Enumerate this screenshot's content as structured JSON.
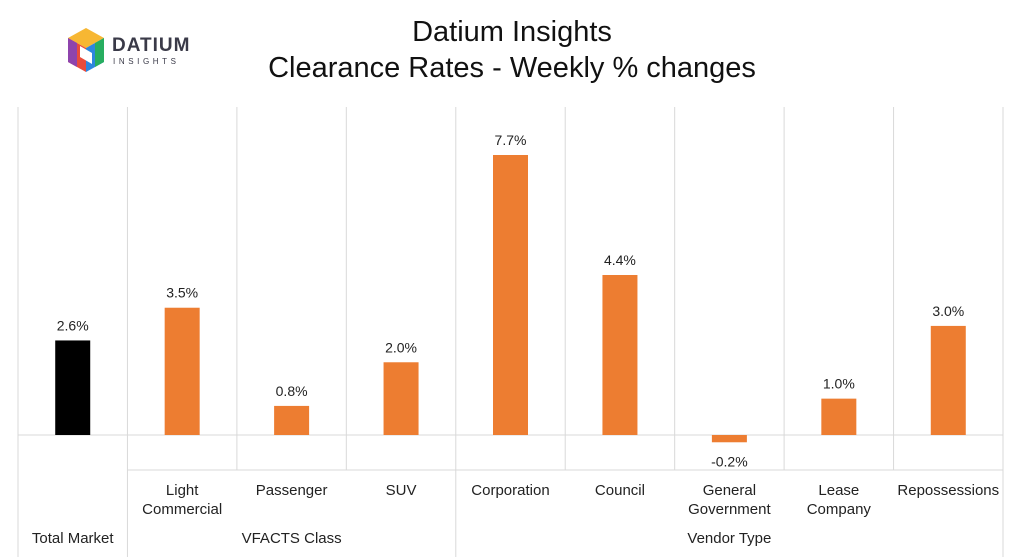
{
  "header": {
    "logo_word": "DATIUM",
    "logo_sub": "INSIGHTS",
    "title": "Datium Insights",
    "subtitle": "Clearance Rates - Weekly % changes"
  },
  "colors": {
    "highlight": "#000000",
    "bar": "#ED7D31",
    "grid": "#D9D9D9"
  },
  "chart_data": {
    "type": "bar",
    "title": "Datium Insights",
    "subtitle": "Clearance Rates - Weekly % changes",
    "xlabel": "",
    "ylabel": "",
    "unit": "%",
    "categories": [
      "Total Market",
      "Light Commercial",
      "Passenger",
      "SUV",
      "Corporation",
      "Council",
      "General Government",
      "Lease Company",
      "Repossessions"
    ],
    "values": [
      2.6,
      3.5,
      0.8,
      2.0,
      7.7,
      4.4,
      -0.2,
      1.0,
      3.0
    ],
    "value_labels": [
      "2.6%",
      "3.5%",
      "0.8%",
      "2.0%",
      "7.7%",
      "4.4%",
      "-0.2%",
      "1.0%",
      "3.0%"
    ],
    "category_lines": [
      [],
      [
        "Light",
        "Commercial"
      ],
      [
        "Passenger"
      ],
      [
        "SUV"
      ],
      [
        "Corporation"
      ],
      [
        "Council"
      ],
      [
        "General",
        "Government"
      ],
      [
        "Lease",
        "Company"
      ],
      [
        "Repossessions"
      ]
    ],
    "groups": [
      {
        "label": "Total Market",
        "categories": [
          "Total Market"
        ]
      },
      {
        "label": "VFACTS Class",
        "categories": [
          "Light Commercial",
          "Passenger",
          "SUV"
        ]
      },
      {
        "label": "Vendor Type",
        "categories": [
          "Corporation",
          "Council",
          "General Government",
          "Lease Company",
          "Repossessions"
        ]
      }
    ],
    "highlight_category": "Total Market",
    "ylim": [
      -0.4,
      8.5
    ],
    "grid": true,
    "legend": "none"
  }
}
